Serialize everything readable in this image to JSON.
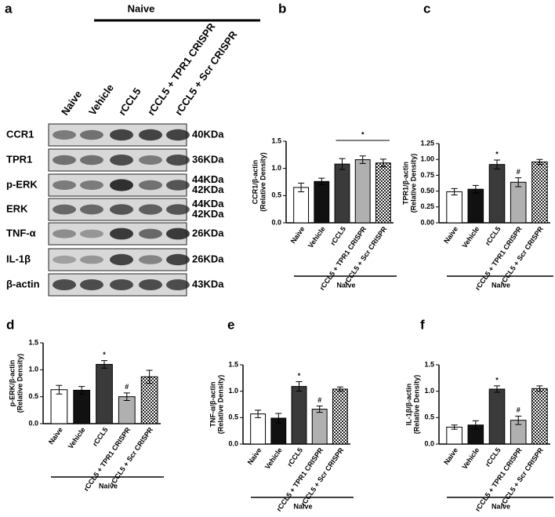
{
  "panel_a": {
    "letter": "a",
    "group_label": "Naive",
    "lanes": [
      "Naive",
      "Vehicle",
      "rCCL5",
      "rCCL5 + TPR1 CRISPR",
      "rCCL5 + Scr CRISPR"
    ],
    "rows": [
      {
        "protein": "CCR1",
        "sizes": [
          "40KDa"
        ]
      },
      {
        "protein": "TPR1",
        "sizes": [
          "36KDa"
        ]
      },
      {
        "protein": "p-ERK",
        "sizes": [
          "44KDa",
          "42KDa"
        ]
      },
      {
        "protein": "ERK",
        "sizes": [
          "44KDa",
          "42KDa"
        ]
      },
      {
        "protein": "TNF-α",
        "sizes": [
          "26KDa"
        ]
      },
      {
        "protein": "IL-1β",
        "sizes": [
          "26KDa"
        ]
      },
      {
        "protein": "β-actin",
        "sizes": [
          "43KDa"
        ]
      }
    ]
  },
  "chart_data": [
    {
      "type": "bar",
      "letter": "b",
      "y_label": [
        "CCR1/β-actin",
        "(Relative Density)"
      ],
      "group_label": "Naive",
      "categories": [
        "Naive",
        "Vehicle",
        "rCCL5",
        "rCCL5 + TPR1 CRISPR",
        "rCCL5 + Scr CRISPR"
      ],
      "values": [
        0.65,
        0.76,
        1.08,
        1.16,
        1.1
      ],
      "errors": [
        0.08,
        0.06,
        0.1,
        0.07,
        0.07
      ],
      "colors": [
        "#ffffff",
        "#111111",
        "#3a3a3a",
        "#b0b0b0",
        "checkered"
      ],
      "markers": [
        null,
        null,
        null,
        null,
        null
      ],
      "bracket": {
        "from": 2,
        "to": 4,
        "text": "*"
      },
      "ylim": [
        0,
        1.5
      ],
      "yticks": [
        {
          "value": 0,
          "label": "0.0"
        },
        {
          "value": 0.5,
          "label": "0.5"
        },
        {
          "value": 1,
          "label": "1.0"
        },
        {
          "value": 1.5,
          "label": "1.5"
        }
      ]
    },
    {
      "type": "bar",
      "letter": "c",
      "y_label": [
        "TPR1/β-actin",
        "(Relative Density)"
      ],
      "group_label": "Naive",
      "categories": [
        "Naive",
        "Vehicle",
        "rCCL5",
        "rCCL5 + TPR1 CRISPR",
        "rCCL5 + Scr CRISPR"
      ],
      "values": [
        0.49,
        0.53,
        0.92,
        0.64,
        0.96
      ],
      "errors": [
        0.05,
        0.06,
        0.07,
        0.07,
        0.04
      ],
      "colors": [
        "#ffffff",
        "#111111",
        "#3a3a3a",
        "#b0b0b0",
        "checkered"
      ],
      "markers": [
        null,
        null,
        "*",
        "#",
        null
      ],
      "ylim": [
        0,
        1.25
      ],
      "yticks": [
        {
          "value": 0,
          "label": "0.00"
        },
        {
          "value": 0.25,
          "label": "0.25"
        },
        {
          "value": 0.5,
          "label": "0.50"
        },
        {
          "value": 0.75,
          "label": "0.75"
        },
        {
          "value": 1,
          "label": "1.00"
        },
        {
          "value": 1.25,
          "label": "1.25"
        }
      ]
    },
    {
      "type": "bar",
      "letter": "d",
      "y_label": [
        "p-ERK/β-actin",
        "(Relative Density)"
      ],
      "group_label": "Naive",
      "categories": [
        "Naive",
        "Vehicle",
        "rCCL5",
        "rCCL5 + TPR1 CRISPR",
        "rCCL5 + Scr CRISPR"
      ],
      "values": [
        0.63,
        0.62,
        1.1,
        0.5,
        0.87
      ],
      "errors": [
        0.08,
        0.07,
        0.07,
        0.07,
        0.12
      ],
      "colors": [
        "#ffffff",
        "#111111",
        "#3a3a3a",
        "#b0b0b0",
        "checkered"
      ],
      "markers": [
        null,
        null,
        "*",
        "#",
        null
      ],
      "ylim": [
        0,
        1.5
      ],
      "yticks": [
        {
          "value": 0,
          "label": "0.0"
        },
        {
          "value": 0.5,
          "label": "0.5"
        },
        {
          "value": 1,
          "label": "1.0"
        },
        {
          "value": 1.5,
          "label": "1.5"
        }
      ]
    },
    {
      "type": "bar",
      "letter": "e",
      "y_label": [
        "TNF-α/β-actin",
        "(Relative Density)"
      ],
      "group_label": "Naive",
      "categories": [
        "Naive",
        "Vehicle",
        "rCCL5",
        "rCCL5 + TPR1 CRISPR",
        "rCCL5 + Scr CRISPR"
      ],
      "values": [
        0.57,
        0.49,
        1.09,
        0.66,
        1.04
      ],
      "errors": [
        0.07,
        0.09,
        0.09,
        0.06,
        0.04
      ],
      "colors": [
        "#ffffff",
        "#111111",
        "#3a3a3a",
        "#b0b0b0",
        "checkered"
      ],
      "markers": [
        null,
        null,
        "*",
        "#",
        null
      ],
      "ylim": [
        0,
        1.5
      ],
      "yticks": [
        {
          "value": 0,
          "label": "0.0"
        },
        {
          "value": 0.5,
          "label": "0.5"
        },
        {
          "value": 1,
          "label": "1.0"
        },
        {
          "value": 1.5,
          "label": "1.5"
        }
      ]
    },
    {
      "type": "bar",
      "letter": "f",
      "y_label": [
        "IL-1β/β-actin",
        "(Relative Density)"
      ],
      "group_label": "Naive",
      "categories": [
        "Naive",
        "Vehicle",
        "rCCL5",
        "rCCL5 + TPR1 CRISPR",
        "rCCL5 + Scr CRISPR"
      ],
      "values": [
        0.32,
        0.36,
        1.04,
        0.45,
        1.05
      ],
      "errors": [
        0.04,
        0.08,
        0.06,
        0.08,
        0.05
      ],
      "colors": [
        "#ffffff",
        "#111111",
        "#3a3a3a",
        "#b0b0b0",
        "checkered"
      ],
      "markers": [
        null,
        null,
        "*",
        "#",
        null
      ],
      "ylim": [
        0,
        1.5
      ],
      "yticks": [
        {
          "value": 0,
          "label": "0.0"
        },
        {
          "value": 0.5,
          "label": "0.5"
        },
        {
          "value": 1,
          "label": "1.0"
        },
        {
          "value": 1.5,
          "label": "1.5"
        }
      ]
    }
  ]
}
